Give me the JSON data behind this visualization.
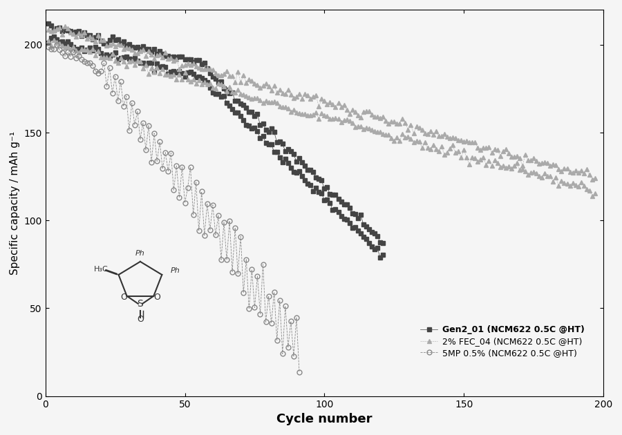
{
  "title": "",
  "xlabel": "Cycle number",
  "ylabel": "Specific capacity / mAh g⁻¹",
  "xlim": [
    0,
    200
  ],
  "ylim": [
    0,
    220
  ],
  "xticks": [
    0,
    50,
    100,
    150,
    200
  ],
  "yticks": [
    0,
    50,
    100,
    150,
    200
  ],
  "background_color": "#f5f5f5",
  "legend_labels": [
    "Gen2_01 (NCM622 0.5C @HT)",
    "2% FEC_04 (NCM622 0.5C @HT)",
    "5MP 0.5% (NCM622 0.5C @HT)"
  ],
  "gen2_color": "#444444",
  "fec_color": "#aaaaaa",
  "smp_color": "#888888",
  "gen2_markersize": 4,
  "fec_markersize": 4,
  "smp_markersize": 5,
  "xlabel_fontsize": 13,
  "ylabel_fontsize": 11,
  "tick_fontsize": 10,
  "legend_fontsize": 9
}
